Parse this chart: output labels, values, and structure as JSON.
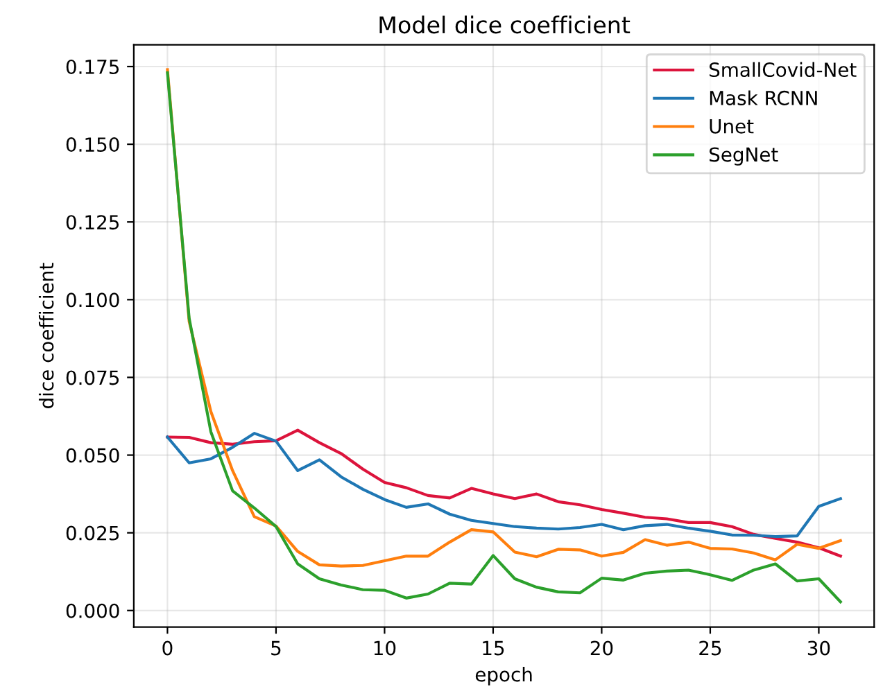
{
  "chart_data": {
    "type": "line",
    "title": "Model dice coefficient",
    "xlabel": "epoch",
    "ylabel": "dice coefficient",
    "x": [
      0,
      1,
      2,
      3,
      4,
      5,
      6,
      7,
      8,
      9,
      10,
      11,
      12,
      13,
      14,
      15,
      16,
      17,
      18,
      19,
      20,
      21,
      22,
      23,
      24,
      25,
      26,
      27,
      28,
      29,
      30,
      31
    ],
    "xlim": [
      -1.55,
      32.55
    ],
    "ylim": [
      -0.0053,
      0.182
    ],
    "xticks": [
      0,
      5,
      10,
      15,
      20,
      25,
      30
    ],
    "yticks": [
      {
        "value": 0,
        "label": "0.000"
      },
      {
        "value": 0.025,
        "label": "0.025"
      },
      {
        "value": 0.05,
        "label": "0.050"
      },
      {
        "value": 0.075,
        "label": "0.075"
      },
      {
        "value": 0.1,
        "label": "0.100"
      },
      {
        "value": 0.125,
        "label": "0.125"
      },
      {
        "value": 0.15,
        "label": "0.150"
      },
      {
        "value": 0.175,
        "label": "0.175"
      }
    ],
    "grid": true,
    "legend": "top right",
    "marker": "none",
    "line_style": "solid",
    "series": [
      {
        "name": "SmallCovid-Net",
        "color": "#dc143c",
        "values": [
          0.0558,
          0.0557,
          0.054,
          0.0535,
          0.0543,
          0.0546,
          0.058,
          0.054,
          0.0505,
          0.0455,
          0.0412,
          0.0395,
          0.037,
          0.0362,
          0.0393,
          0.0375,
          0.036,
          0.0375,
          0.035,
          0.034,
          0.0325,
          0.0313,
          0.03,
          0.0295,
          0.0283,
          0.0283,
          0.027,
          0.0245,
          0.0232,
          0.022,
          0.0202,
          0.0175
        ]
      },
      {
        "name": "Mask RCNN",
        "color": "#1f77b4",
        "values": [
          0.0558,
          0.0475,
          0.0488,
          0.0525,
          0.057,
          0.0545,
          0.045,
          0.0485,
          0.043,
          0.039,
          0.0357,
          0.0332,
          0.0343,
          0.031,
          0.029,
          0.028,
          0.027,
          0.0265,
          0.0262,
          0.0267,
          0.0277,
          0.026,
          0.0273,
          0.0277,
          0.0265,
          0.0255,
          0.0243,
          0.0242,
          0.0238,
          0.024,
          0.0335,
          0.036
        ]
      },
      {
        "name": "Unet",
        "color": "#ff7f0e",
        "values": [
          0.174,
          0.093,
          0.064,
          0.045,
          0.0302,
          0.0272,
          0.019,
          0.0147,
          0.0143,
          0.0145,
          0.016,
          0.0175,
          0.0175,
          0.022,
          0.026,
          0.0253,
          0.0188,
          0.0173,
          0.0197,
          0.0195,
          0.0175,
          0.0187,
          0.0228,
          0.021,
          0.022,
          0.02,
          0.0198,
          0.0185,
          0.0163,
          0.0213,
          0.02,
          0.0225
        ]
      },
      {
        "name": "SegNet",
        "color": "#2ca02c",
        "values": [
          0.173,
          0.094,
          0.0575,
          0.0385,
          0.033,
          0.027,
          0.015,
          0.0102,
          0.0082,
          0.0067,
          0.0065,
          0.004,
          0.0053,
          0.0088,
          0.0085,
          0.0177,
          0.0102,
          0.0075,
          0.006,
          0.0057,
          0.0104,
          0.0098,
          0.012,
          0.0127,
          0.013,
          0.0115,
          0.0097,
          0.013,
          0.015,
          0.0095,
          0.0102,
          0.0028
        ]
      }
    ]
  }
}
